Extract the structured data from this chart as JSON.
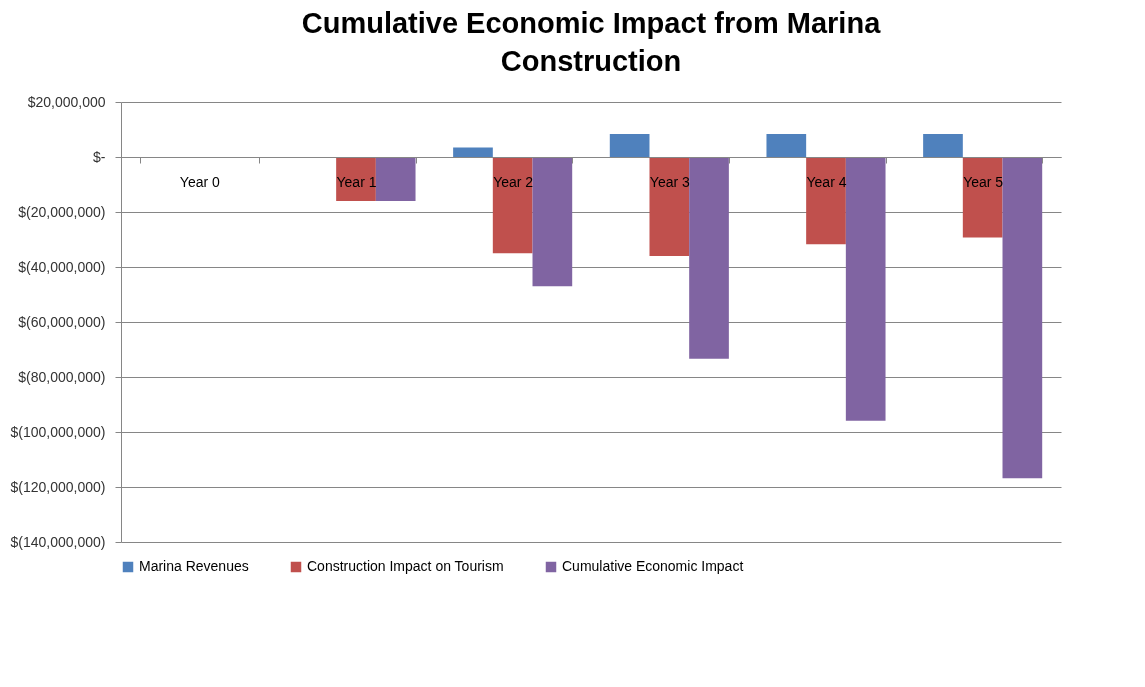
{
  "chart_data": {
    "type": "bar",
    "title": "Cumulative Economic Impact from Marina Construction",
    "categories": [
      "Year 0",
      "Year 1",
      "Year 2",
      "Year 3",
      "Year 4",
      "Year 5"
    ],
    "series": [
      {
        "name": "Marina Revenues",
        "color": "#4f81bd",
        "values": [
          0,
          0,
          3500000,
          8400000,
          8400000,
          8400000
        ]
      },
      {
        "name": "Construction Impact on Tourism",
        "color": "#c0504d",
        "values": [
          0,
          -16000000,
          -35000000,
          -36000000,
          -31700000,
          -29300000
        ]
      },
      {
        "name": "Cumulative Economic Impact",
        "color": "#8064a2",
        "values": [
          0,
          -16000000,
          -47000000,
          -73400000,
          -95900000,
          -116800000
        ]
      }
    ],
    "ylim": [
      -140000000,
      20000000
    ],
    "yticks": [
      {
        "value": 20000000,
        "label": "$20,000,000"
      },
      {
        "value": 0,
        "label": "$-"
      },
      {
        "value": -20000000,
        "label": "$(20,000,000)"
      },
      {
        "value": -40000000,
        "label": "$(40,000,000)"
      },
      {
        "value": -60000000,
        "label": "$(60,000,000)"
      },
      {
        "value": -80000000,
        "label": "$(80,000,000)"
      },
      {
        "value": -100000000,
        "label": "$(100,000,000)"
      },
      {
        "value": -120000000,
        "label": "$(120,000,000)"
      },
      {
        "value": -140000000,
        "label": "$(140,000,000)"
      }
    ],
    "grid": "y",
    "legend": "bottom"
  }
}
